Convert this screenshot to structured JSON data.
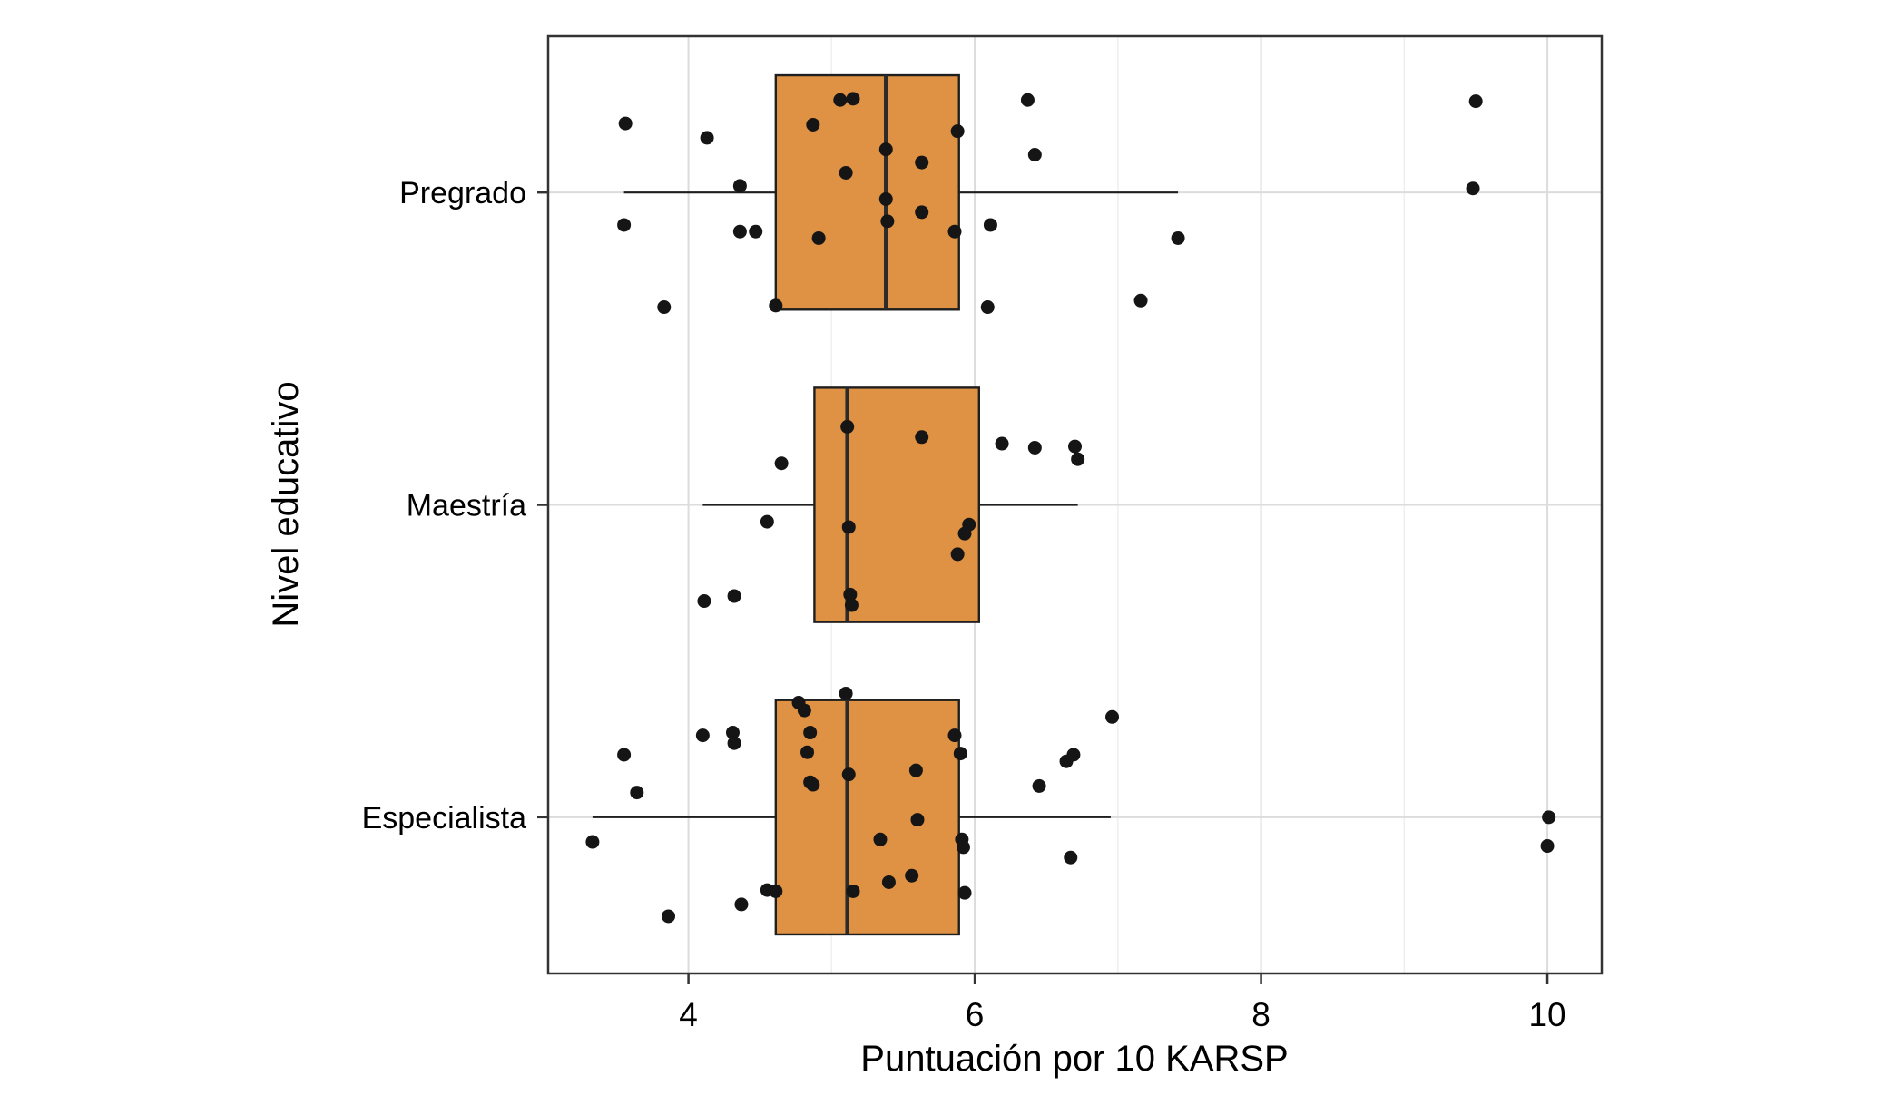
{
  "figure": {
    "background": "#ffffff"
  },
  "chart_data": {
    "type": "boxplot",
    "orientation": "horizontal",
    "overlay": "jittered points",
    "title": "",
    "xlabel": "Puntuación por 10 KARSP",
    "ylabel": "Nivel educativo",
    "xlim": [
      3.02,
      10.38
    ],
    "x_major_ticks": [
      4,
      6,
      8,
      10
    ],
    "x_tick_labels": [
      "4",
      "6",
      "8",
      "10"
    ],
    "x_minor_ticks": [
      5,
      7,
      9
    ],
    "grid": true,
    "legend": "none",
    "categories": [
      "Pregrado",
      "Maestría",
      "Especialista"
    ],
    "box_width_fraction": 0.75,
    "colors": {
      "box_fill": "#df9243",
      "box_stroke": "#1f1f1f",
      "median": "#2b2b2b",
      "whisker": "#1f1f1f",
      "point": "#151515",
      "grid_major": "#dcdcdc",
      "grid_minor": "#efefef",
      "panel_border": "#333333",
      "text": "#000000"
    },
    "series": [
      {
        "category": "Pregrado",
        "whisker_low": 3.55,
        "q1": 4.61,
        "median": 5.38,
        "q3": 5.89,
        "whisker_high": 7.42,
        "points": [
          [
            3.56,
            -0.221
          ],
          [
            4.13,
            -0.175
          ],
          [
            4.36,
            -0.021
          ],
          [
            3.55,
            0.104
          ],
          [
            4.36,
            0.125
          ],
          [
            4.47,
            0.125
          ],
          [
            3.83,
            0.367
          ],
          [
            4.61,
            0.362
          ],
          [
            4.87,
            -0.217
          ],
          [
            5.06,
            -0.296
          ],
          [
            5.15,
            -0.3
          ],
          [
            5.1,
            -0.063
          ],
          [
            4.91,
            0.146
          ],
          [
            5.38,
            -0.138
          ],
          [
            5.38,
            0.021
          ],
          [
            5.39,
            0.092
          ],
          [
            5.63,
            -0.096
          ],
          [
            5.63,
            0.063
          ],
          [
            5.88,
            -0.196
          ],
          [
            5.86,
            0.125
          ],
          [
            6.11,
            0.104
          ],
          [
            6.09,
            0.367
          ],
          [
            6.37,
            -0.296
          ],
          [
            6.42,
            -0.121
          ],
          [
            7.16,
            0.346
          ],
          [
            7.42,
            0.146
          ],
          [
            9.5,
            -0.292
          ],
          [
            9.48,
            -0.013
          ]
        ]
      },
      {
        "category": "Maestría",
        "whisker_low": 4.1,
        "q1": 4.88,
        "median": 5.11,
        "q3": 6.03,
        "whisker_high": 6.72,
        "points": [
          [
            4.65,
            -0.133
          ],
          [
            4.55,
            0.054
          ],
          [
            4.11,
            0.308
          ],
          [
            4.32,
            0.292
          ],
          [
            5.11,
            -0.25
          ],
          [
            5.12,
            0.071
          ],
          [
            5.13,
            0.287
          ],
          [
            5.14,
            0.321
          ],
          [
            5.63,
            -0.217
          ],
          [
            5.96,
            0.063
          ],
          [
            5.93,
            0.092
          ],
          [
            5.88,
            0.158
          ],
          [
            6.19,
            -0.196
          ],
          [
            6.42,
            -0.183
          ],
          [
            6.7,
            -0.187
          ],
          [
            6.72,
            -0.146
          ]
        ]
      },
      {
        "category": "Especialista",
        "whisker_low": 3.33,
        "q1": 4.61,
        "median": 5.11,
        "q3": 5.89,
        "whisker_high": 6.95,
        "points": [
          [
            3.33,
            0.079
          ],
          [
            3.55,
            -0.2
          ],
          [
            3.64,
            -0.079
          ],
          [
            3.86,
            0.317
          ],
          [
            4.1,
            -0.262
          ],
          [
            4.31,
            -0.271
          ],
          [
            4.32,
            -0.237
          ],
          [
            4.37,
            0.279
          ],
          [
            4.55,
            0.233
          ],
          [
            4.61,
            0.237
          ],
          [
            4.77,
            -0.367
          ],
          [
            4.81,
            -0.342
          ],
          [
            4.85,
            -0.271
          ],
          [
            4.83,
            -0.208
          ],
          [
            4.85,
            -0.112
          ],
          [
            4.87,
            -0.104
          ],
          [
            5.1,
            -0.396
          ],
          [
            5.12,
            -0.137
          ],
          [
            5.15,
            0.237
          ],
          [
            5.34,
            0.071
          ],
          [
            5.4,
            0.208
          ],
          [
            5.59,
            -0.15
          ],
          [
            5.6,
            0.008
          ],
          [
            5.56,
            0.187
          ],
          [
            5.86,
            -0.262
          ],
          [
            5.9,
            -0.204
          ],
          [
            5.91,
            0.071
          ],
          [
            5.92,
            0.096
          ],
          [
            5.93,
            0.242
          ],
          [
            6.45,
            -0.1
          ],
          [
            6.64,
            -0.179
          ],
          [
            6.69,
            -0.2
          ],
          [
            6.67,
            0.129
          ],
          [
            6.96,
            -0.321
          ],
          [
            10.01,
            0.0
          ],
          [
            10.0,
            0.092
          ]
        ]
      }
    ]
  }
}
